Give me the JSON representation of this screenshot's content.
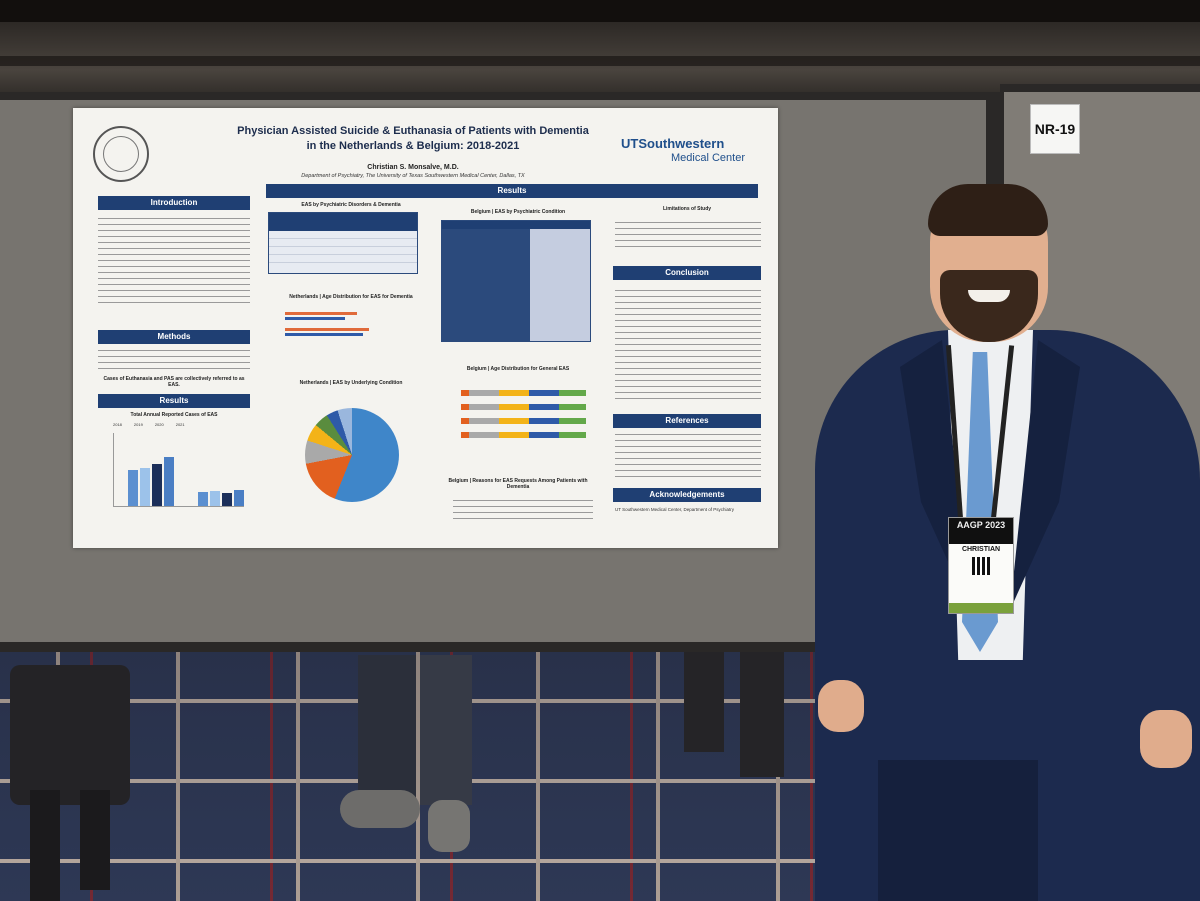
{
  "sign": {
    "label": "NR-19"
  },
  "poster": {
    "title_line1": "Physician Assisted Suicide & Euthanasia of Patients with Dementia",
    "title_line2": "in the Netherlands & Belgium: 2018-2021",
    "author": "Christian S. Monsalve, M.D.",
    "department": "Department of Psychiatry, The University of Texas Southwestern Medical Center, Dallas, TX",
    "logo_line1": "UTSouthwestern",
    "logo_line2": "Medical Center",
    "sections": {
      "introduction": "Introduction",
      "methods": "Methods",
      "results_left": "Results",
      "results_center": "Results",
      "conclusion": "Conclusion",
      "references": "References",
      "acknowledgements": "Acknowledgements"
    },
    "subheads": {
      "eas_psych": "EAS by Psychiatric Disorders & Dementia",
      "nl_age": "Netherlands | Age Distribution for EAS for Dementia",
      "nl_condition": "Netherlands | EAS by Underlying Condition",
      "belgium_psych": "Belgium | EAS by Psychiatric Condition",
      "belgium_age": "Belgium | Age Distribution for General EAS",
      "belgium_reasons": "Belgium | Reasons for EAS Requests Among Patients with Dementia",
      "total_annual": "Total Annual Reported Cases of EAS",
      "limitations": "Limitations of Study"
    },
    "methods_bold": "Cases of Euthanasia and PAS are collectively referred to as EAS.",
    "acknowledgement_text": "UT Southwestern Medical Center, Department of Psychiatry",
    "legend_years": [
      "2018",
      "2019",
      "2020",
      "2021"
    ]
  },
  "badge": {
    "event": "AAGP 2023",
    "name": "CHRISTIAN"
  }
}
